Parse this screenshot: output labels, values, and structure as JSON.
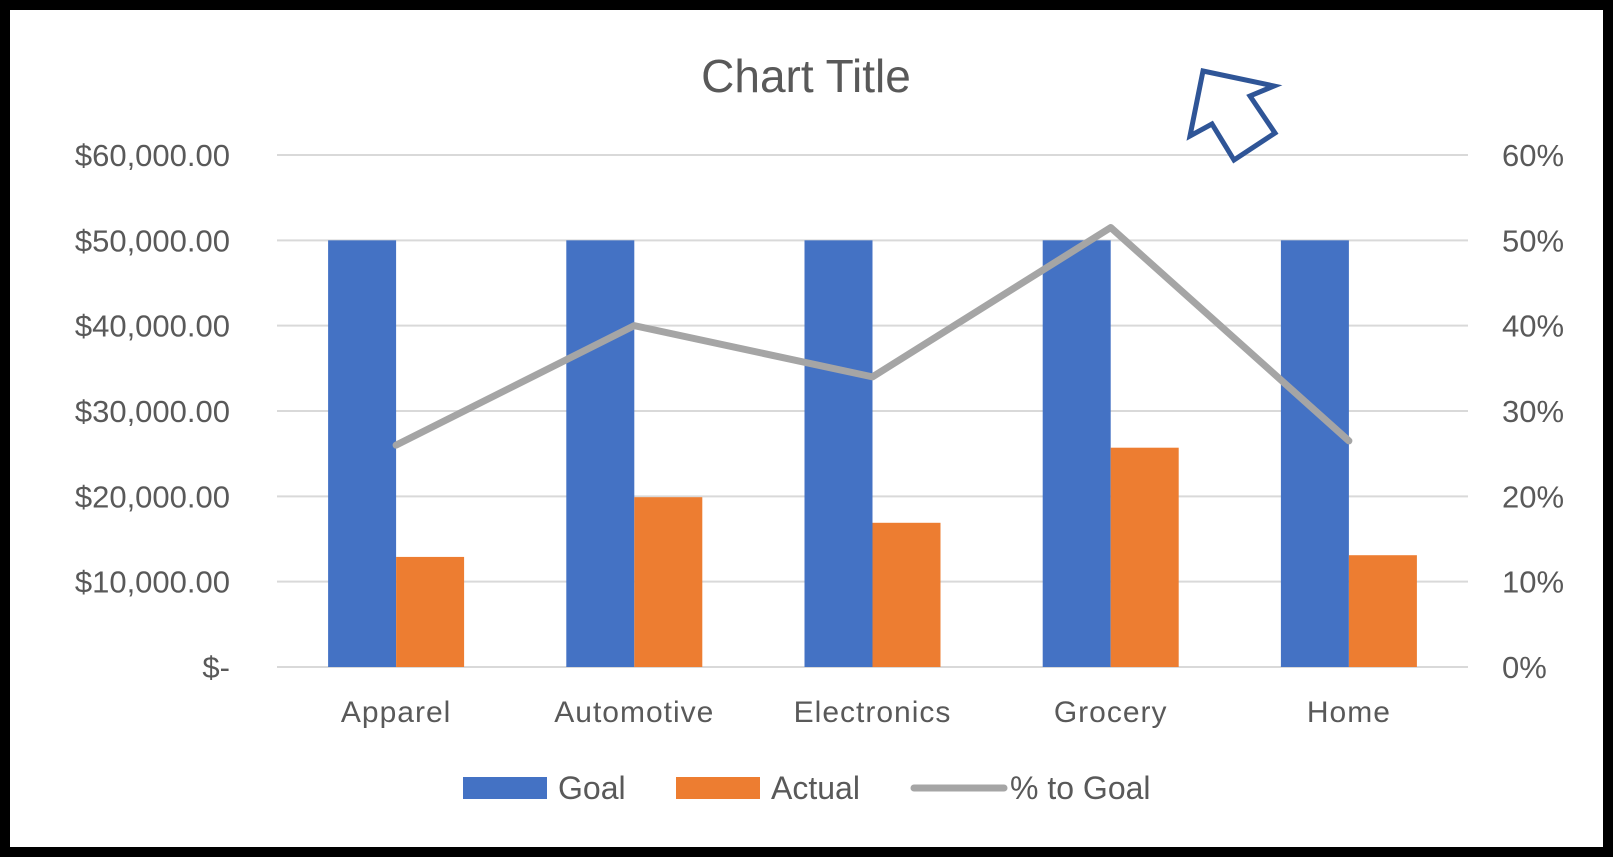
{
  "chart_data": {
    "type": "bar",
    "title": "Chart Title",
    "categories": [
      "Apparel",
      "Automotive",
      "Electronics",
      "Grocery",
      "Home"
    ],
    "series": [
      {
        "name": "Goal",
        "type": "bar",
        "axis": "primary",
        "color": "#4472C4",
        "values": [
          50000,
          50000,
          50000,
          50000,
          50000
        ]
      },
      {
        "name": "Actual",
        "type": "bar",
        "axis": "primary",
        "color": "#ED7D31",
        "values": [
          12900,
          19900,
          16900,
          25700,
          13100
        ]
      },
      {
        "name": "% to Goal",
        "type": "line",
        "axis": "secondary",
        "color": "#A5A5A5",
        "values": [
          0.26,
          0.4,
          0.34,
          0.515,
          0.265
        ]
      }
    ],
    "ylim": [
      0,
      60000
    ],
    "y2lim": [
      0,
      0.6
    ],
    "yticks": [
      "$-",
      "$10,000.00",
      "$20,000.00",
      "$30,000.00",
      "$40,000.00",
      "$50,000.00",
      "$60,000.00"
    ],
    "y2ticks": [
      "0%",
      "10%",
      "20%",
      "30%",
      "40%",
      "50%",
      "60%"
    ],
    "grid": true,
    "legend": "bottom",
    "annotation_icon": "arrow-cursor-icon",
    "annotation_color": "#2F5597"
  }
}
